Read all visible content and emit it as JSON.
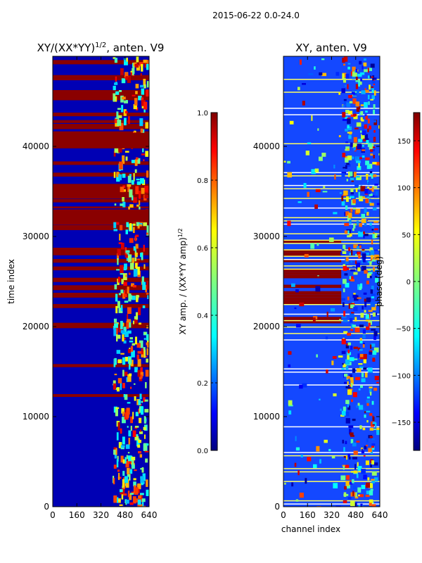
{
  "figure": {
    "suptitle": "2015-06-22 0.0-24.0"
  },
  "chart_data": [
    {
      "type": "heatmap",
      "title": "XY/(XX*YY)^1/2, anten. V9",
      "title_main": "XY/(XX*YY)",
      "title_sup": "1/2",
      "title_tail": ", anten. V9",
      "xlabel": "",
      "ylabel": "time index",
      "xlim": [
        0,
        640
      ],
      "ylim": [
        0,
        50000
      ],
      "xticks": [
        "0",
        "160",
        "320",
        "480",
        "640"
      ],
      "yticks": [
        "0",
        "10000",
        "20000",
        "30000",
        "40000"
      ],
      "colorbar": {
        "label": "XY amp. / (XX*YY amp)^1/2",
        "label_main": "XY amp. / (XX*YY amp)",
        "label_sup": "1/2",
        "range": [
          0.0,
          1.0
        ],
        "ticks": [
          "0.0",
          "0.2",
          "0.4",
          "0.6",
          "0.8",
          "1.0"
        ],
        "colormap": "jet"
      }
    },
    {
      "type": "heatmap",
      "title": "XY, anten. V9",
      "xlabel": "channel index",
      "ylabel": "",
      "xlim": [
        0,
        640
      ],
      "ylim": [
        0,
        50000
      ],
      "xticks": [
        "0",
        "160",
        "320",
        "480",
        "640"
      ],
      "yticks": [
        "0",
        "10000",
        "20000",
        "30000",
        "40000"
      ],
      "colorbar": {
        "label": "phase (deg)",
        "range": [
          -180,
          180
        ],
        "ticks": [
          "−150",
          "−100",
          "−50",
          "0",
          "50",
          "100",
          "150"
        ],
        "colormap": "jet"
      }
    }
  ]
}
